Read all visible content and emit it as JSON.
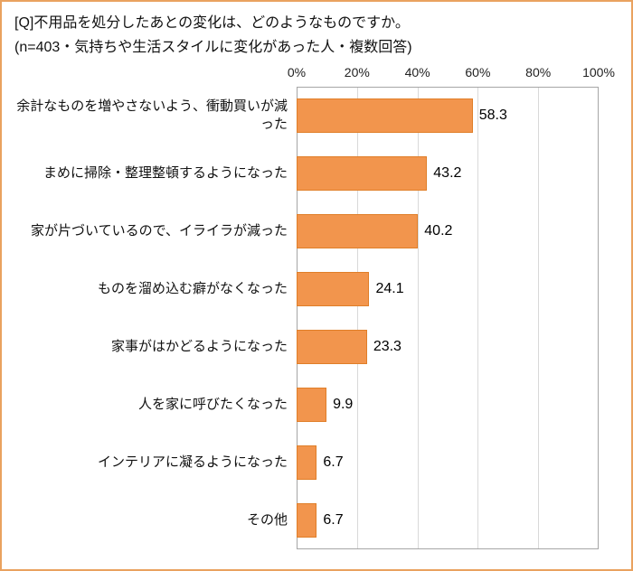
{
  "title": "[Q]不用品を処分したあとの変化は、どのようなものですか。",
  "subtitle": "(n=403・気持ちや生活スタイルに変化があった人・複数回答)",
  "chart_data": {
    "type": "bar",
    "orientation": "horizontal",
    "title": "[Q]不用品を処分したあとの変化は、どのようなものですか。",
    "subtitle": "(n=403・気持ちや生活スタイルに変化があった人・複数回答)",
    "categories": [
      "余計なものを増やさないよう、衝動買いが減った",
      "まめに掃除・整理整頓するようになった",
      "家が片づいているので、イライラが減った",
      "ものを溜め込む癖がなくなった",
      "家事がはかどるようになった",
      "人を家に呼びたくなった",
      "インテリアに凝るようになった",
      "その他"
    ],
    "values": [
      58.3,
      43.2,
      40.2,
      24.1,
      23.3,
      9.9,
      6.7,
      6.7
    ],
    "value_labels": [
      "58.3",
      "43.2",
      "40.2",
      "24.1",
      "23.3",
      "9.9",
      "6.7",
      "6.7"
    ],
    "xlim": [
      0,
      100
    ],
    "xticks": [
      0,
      20,
      40,
      60,
      80,
      100
    ],
    "xtick_labels": [
      "0%",
      "20%",
      "40%",
      "60%",
      "80%",
      "100%"
    ],
    "grid": "vertical",
    "legend": "none",
    "bar_color": "#F2954D",
    "bar_border_color": "#E07E28",
    "plot_border_color": "#A6A6A6",
    "gridline_color": "#D9D9D9",
    "page_border_color": "#E9A25F"
  }
}
